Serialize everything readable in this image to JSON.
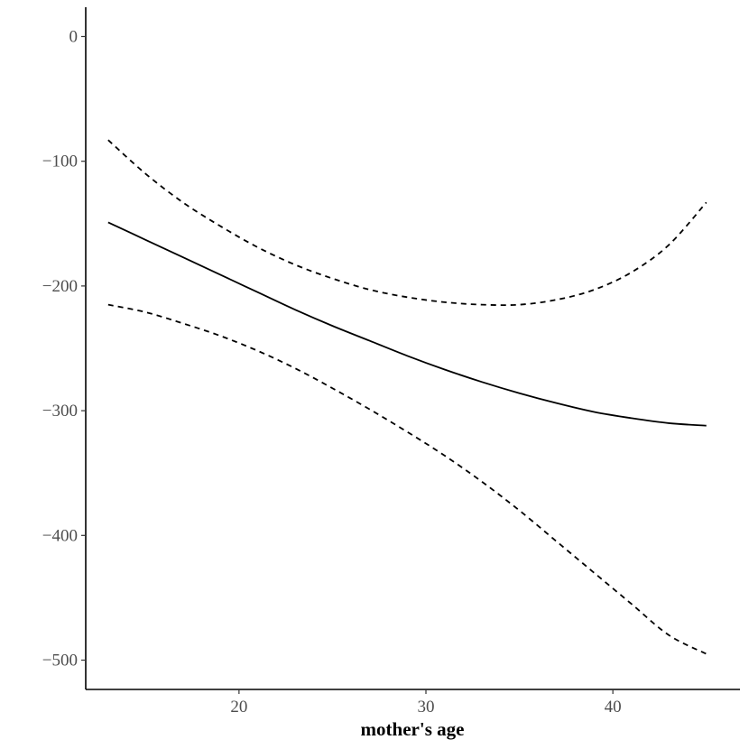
{
  "chart_data": {
    "type": "line",
    "title": "",
    "xlabel": "mother's age",
    "ylabel": "",
    "xlim": [
      11.8,
      46.8
    ],
    "ylim": [
      -523.5,
      23.5
    ],
    "x_ticks": [
      20,
      30,
      40
    ],
    "y_ticks": [
      0,
      -100,
      -200,
      -300,
      -400,
      -500
    ],
    "x_tick_labels": [
      "20",
      "30",
      "40"
    ],
    "y_tick_labels": [
      "0",
      "−100",
      "−200",
      "−300",
      "−400",
      "−500"
    ],
    "grid": false,
    "legend": "none",
    "x": [
      13,
      15,
      17,
      19,
      21,
      23,
      25,
      27,
      29,
      31,
      33,
      35,
      37,
      39,
      41,
      43,
      45
    ],
    "series": [
      {
        "style": "solid",
        "values": [
          -149,
          -163,
          -177,
          -191,
          -205,
          -219,
          -232,
          -244,
          -256,
          -267,
          -277,
          -286,
          -294,
          -301,
          -306,
          -310,
          -312
        ]
      },
      {
        "style": "dashed",
        "values": [
          -83,
          -110,
          -133,
          -152,
          -169,
          -183,
          -194,
          -203,
          -209,
          -213,
          -215,
          -215,
          -211,
          -203,
          -189,
          -167,
          -133
        ]
      },
      {
        "style": "dashed",
        "values": [
          -215,
          -221,
          -230,
          -240,
          -252,
          -266,
          -282,
          -299,
          -317,
          -336,
          -357,
          -380,
          -405,
          -430,
          -455,
          -480,
          -495
        ]
      }
    ]
  }
}
